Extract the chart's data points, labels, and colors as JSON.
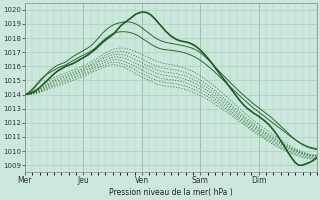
{
  "title": "Pression niveau de la mer( hPa )",
  "bg_color": "#cce8dc",
  "grid_color": "#a8cfc0",
  "line_color": "#1a5c1a",
  "ylim": [
    1008.5,
    1020.5
  ],
  "yticks": [
    1009,
    1010,
    1011,
    1012,
    1013,
    1014,
    1015,
    1016,
    1017,
    1018,
    1019,
    1020
  ],
  "day_labels": [
    "Mer",
    "Jeu",
    "Ven",
    "Sam",
    "Dim"
  ],
  "day_positions": [
    0,
    48,
    96,
    144,
    192
  ],
  "total_hours": 240,
  "main_line": [
    1014.0,
    1014.05,
    1014.15,
    1014.3,
    1014.5,
    1014.75,
    1015.0,
    1015.25,
    1015.5,
    1015.7,
    1015.85,
    1016.0,
    1016.1,
    1016.2,
    1016.35,
    1016.5,
    1016.65,
    1016.8,
    1017.0,
    1017.2,
    1017.45,
    1017.7,
    1017.9,
    1018.1,
    1018.3,
    1018.6,
    1018.9,
    1019.1,
    1019.3,
    1019.5,
    1019.7,
    1019.8,
    1019.85,
    1019.8,
    1019.65,
    1019.4,
    1019.1,
    1018.8,
    1018.5,
    1018.25,
    1018.05,
    1017.9,
    1017.8,
    1017.75,
    1017.7,
    1017.6,
    1017.45,
    1017.25,
    1017.0,
    1016.7,
    1016.4,
    1016.05,
    1015.7,
    1015.35,
    1015.0,
    1014.65,
    1014.3,
    1013.95,
    1013.6,
    1013.3,
    1013.05,
    1012.85,
    1012.65,
    1012.5,
    1012.3,
    1012.1,
    1011.85,
    1011.55,
    1011.2,
    1010.8,
    1010.4,
    1009.95,
    1009.55,
    1009.2,
    1009.0,
    1009.0,
    1009.1,
    1009.2,
    1009.35,
    1009.55
  ],
  "upper_line1": [
    1014.0,
    1014.1,
    1014.3,
    1014.6,
    1014.9,
    1015.2,
    1015.5,
    1015.75,
    1015.95,
    1016.1,
    1016.2,
    1016.3,
    1016.5,
    1016.7,
    1016.85,
    1017.0,
    1017.15,
    1017.3,
    1017.5,
    1017.75,
    1018.05,
    1018.35,
    1018.6,
    1018.8,
    1018.95,
    1019.05,
    1019.1,
    1019.15,
    1019.15,
    1019.1,
    1019.0,
    1018.85,
    1018.65,
    1018.45,
    1018.25,
    1018.05,
    1017.9,
    1017.78,
    1017.7,
    1017.65,
    1017.6,
    1017.55,
    1017.5,
    1017.45,
    1017.38,
    1017.3,
    1017.2,
    1017.05,
    1016.85,
    1016.6,
    1016.35,
    1016.08,
    1015.8,
    1015.52,
    1015.25,
    1014.98,
    1014.72,
    1014.47,
    1014.22,
    1013.98,
    1013.75,
    1013.52,
    1013.3,
    1013.1,
    1012.9,
    1012.7,
    1012.5,
    1012.28,
    1012.05,
    1011.8,
    1011.55,
    1011.3,
    1011.05,
    1010.82,
    1010.62,
    1010.45,
    1010.32,
    1010.22,
    1010.15,
    1010.1
  ],
  "upper_line2": [
    1014.0,
    1014.15,
    1014.4,
    1014.7,
    1015.0,
    1015.25,
    1015.45,
    1015.6,
    1015.75,
    1015.9,
    1016.0,
    1016.1,
    1016.25,
    1016.4,
    1016.55,
    1016.7,
    1016.82,
    1016.95,
    1017.1,
    1017.3,
    1017.55,
    1017.8,
    1018.02,
    1018.2,
    1018.35,
    1018.42,
    1018.45,
    1018.45,
    1018.42,
    1018.35,
    1018.25,
    1018.1,
    1017.92,
    1017.75,
    1017.58,
    1017.42,
    1017.3,
    1017.22,
    1017.18,
    1017.15,
    1017.12,
    1017.08,
    1017.03,
    1016.97,
    1016.88,
    1016.78,
    1016.65,
    1016.5,
    1016.32,
    1016.12,
    1015.9,
    1015.67,
    1015.42,
    1015.17,
    1014.92,
    1014.67,
    1014.42,
    1014.17,
    1013.92,
    1013.68,
    1013.45,
    1013.22,
    1013.0,
    1012.8,
    1012.6,
    1012.4,
    1012.2,
    1012.0,
    1011.8,
    1011.6,
    1011.4,
    1011.2,
    1011.0,
    1010.82,
    1010.65,
    1010.5,
    1010.38,
    1010.28,
    1010.22,
    1010.18
  ],
  "spread_lines": [
    [
      1014.0,
      1014.05,
      1014.15,
      1014.3,
      1014.5,
      1014.7,
      1014.9,
      1015.08,
      1015.22,
      1015.35,
      1015.45,
      1015.55,
      1015.65,
      1015.75,
      1015.85,
      1015.95,
      1016.05,
      1016.18,
      1016.32,
      1016.48,
      1016.65,
      1016.82,
      1016.98,
      1017.12,
      1017.22,
      1017.28,
      1017.3,
      1017.28,
      1017.22,
      1017.14,
      1017.04,
      1016.92,
      1016.8,
      1016.67,
      1016.54,
      1016.42,
      1016.32,
      1016.24,
      1016.18,
      1016.14,
      1016.1,
      1016.05,
      1015.98,
      1015.9,
      1015.8,
      1015.68,
      1015.55,
      1015.4,
      1015.23,
      1015.05,
      1014.85,
      1014.65,
      1014.43,
      1014.2,
      1013.97,
      1013.73,
      1013.49,
      1013.25,
      1013.01,
      1012.78,
      1012.56,
      1012.34,
      1012.13,
      1011.93,
      1011.74,
      1011.55,
      1011.36,
      1011.18,
      1011.0,
      1010.82,
      1010.65,
      1010.48,
      1010.32,
      1010.18,
      1010.05,
      1009.94,
      1009.85,
      1009.78,
      1009.73,
      1009.7
    ],
    [
      1014.0,
      1014.05,
      1014.13,
      1014.25,
      1014.4,
      1014.57,
      1014.75,
      1014.92,
      1015.07,
      1015.2,
      1015.3,
      1015.4,
      1015.5,
      1015.6,
      1015.7,
      1015.8,
      1015.9,
      1016.02,
      1016.15,
      1016.3,
      1016.47,
      1016.64,
      1016.8,
      1016.93,
      1017.02,
      1017.07,
      1017.07,
      1017.03,
      1016.95,
      1016.84,
      1016.72,
      1016.59,
      1016.46,
      1016.33,
      1016.2,
      1016.08,
      1015.98,
      1015.9,
      1015.85,
      1015.81,
      1015.78,
      1015.73,
      1015.67,
      1015.59,
      1015.49,
      1015.37,
      1015.24,
      1015.09,
      1014.93,
      1014.75,
      1014.56,
      1014.36,
      1014.15,
      1013.93,
      1013.7,
      1013.47,
      1013.24,
      1013.01,
      1012.78,
      1012.55,
      1012.33,
      1012.12,
      1011.92,
      1011.72,
      1011.53,
      1011.35,
      1011.17,
      1011.0,
      1010.83,
      1010.67,
      1010.51,
      1010.36,
      1010.22,
      1010.09,
      1009.97,
      1009.87,
      1009.79,
      1009.73,
      1009.69,
      1009.67
    ],
    [
      1014.0,
      1014.04,
      1014.11,
      1014.22,
      1014.36,
      1014.51,
      1014.67,
      1014.83,
      1014.97,
      1015.1,
      1015.2,
      1015.3,
      1015.4,
      1015.5,
      1015.6,
      1015.7,
      1015.8,
      1015.92,
      1016.05,
      1016.19,
      1016.35,
      1016.51,
      1016.65,
      1016.77,
      1016.84,
      1016.87,
      1016.85,
      1016.79,
      1016.7,
      1016.59,
      1016.46,
      1016.33,
      1016.2,
      1016.07,
      1015.94,
      1015.82,
      1015.72,
      1015.64,
      1015.59,
      1015.55,
      1015.52,
      1015.48,
      1015.42,
      1015.35,
      1015.25,
      1015.14,
      1015.01,
      1014.87,
      1014.71,
      1014.54,
      1014.36,
      1014.16,
      1013.96,
      1013.75,
      1013.53,
      1013.3,
      1013.08,
      1012.86,
      1012.63,
      1012.41,
      1012.2,
      1011.99,
      1011.79,
      1011.6,
      1011.42,
      1011.24,
      1011.07,
      1010.9,
      1010.74,
      1010.59,
      1010.44,
      1010.3,
      1010.17,
      1010.05,
      1009.94,
      1009.85,
      1009.78,
      1009.72,
      1009.68,
      1009.66
    ],
    [
      1014.0,
      1014.03,
      1014.09,
      1014.18,
      1014.3,
      1014.44,
      1014.59,
      1014.73,
      1014.86,
      1014.98,
      1015.08,
      1015.18,
      1015.28,
      1015.38,
      1015.48,
      1015.58,
      1015.68,
      1015.8,
      1015.92,
      1016.06,
      1016.21,
      1016.36,
      1016.49,
      1016.6,
      1016.66,
      1016.67,
      1016.63,
      1016.56,
      1016.46,
      1016.34,
      1016.21,
      1016.08,
      1015.95,
      1015.82,
      1015.69,
      1015.57,
      1015.47,
      1015.4,
      1015.35,
      1015.31,
      1015.28,
      1015.24,
      1015.18,
      1015.11,
      1015.02,
      1014.91,
      1014.79,
      1014.65,
      1014.5,
      1014.33,
      1014.16,
      1013.97,
      1013.77,
      1013.57,
      1013.36,
      1013.14,
      1012.92,
      1012.71,
      1012.49,
      1012.28,
      1012.07,
      1011.87,
      1011.67,
      1011.48,
      1011.3,
      1011.13,
      1010.96,
      1010.8,
      1010.64,
      1010.5,
      1010.36,
      1010.22,
      1010.1,
      1009.99,
      1009.88,
      1009.79,
      1009.72,
      1009.67,
      1009.64,
      1009.62
    ],
    [
      1014.0,
      1014.02,
      1014.07,
      1014.15,
      1014.25,
      1014.37,
      1014.5,
      1014.63,
      1014.75,
      1014.86,
      1014.96,
      1015.06,
      1015.16,
      1015.26,
      1015.36,
      1015.46,
      1015.56,
      1015.67,
      1015.8,
      1015.93,
      1016.07,
      1016.21,
      1016.33,
      1016.43,
      1016.48,
      1016.47,
      1016.42,
      1016.33,
      1016.22,
      1016.09,
      1015.96,
      1015.82,
      1015.69,
      1015.56,
      1015.44,
      1015.32,
      1015.22,
      1015.15,
      1015.1,
      1015.07,
      1015.04,
      1015.0,
      1014.94,
      1014.87,
      1014.78,
      1014.68,
      1014.56,
      1014.42,
      1014.28,
      1014.12,
      1013.95,
      1013.77,
      1013.58,
      1013.39,
      1013.19,
      1012.98,
      1012.77,
      1012.56,
      1012.35,
      1012.14,
      1011.94,
      1011.74,
      1011.55,
      1011.36,
      1011.18,
      1011.01,
      1010.84,
      1010.68,
      1010.53,
      1010.39,
      1010.25,
      1010.12,
      1010.0,
      1009.9,
      1009.8,
      1009.71,
      1009.64,
      1009.59,
      1009.55,
      1009.53
    ],
    [
      1014.0,
      1014.01,
      1014.05,
      1014.12,
      1014.2,
      1014.3,
      1014.42,
      1014.53,
      1014.64,
      1014.74,
      1014.83,
      1014.93,
      1015.03,
      1015.13,
      1015.23,
      1015.33,
      1015.44,
      1015.55,
      1015.67,
      1015.8,
      1015.93,
      1016.06,
      1016.17,
      1016.26,
      1016.3,
      1016.28,
      1016.21,
      1016.11,
      1015.99,
      1015.85,
      1015.71,
      1015.57,
      1015.44,
      1015.31,
      1015.19,
      1015.07,
      1014.97,
      1014.9,
      1014.85,
      1014.82,
      1014.79,
      1014.75,
      1014.7,
      1014.63,
      1014.55,
      1014.44,
      1014.33,
      1014.2,
      1014.06,
      1013.91,
      1013.75,
      1013.58,
      1013.4,
      1013.22,
      1013.03,
      1012.83,
      1012.63,
      1012.43,
      1012.22,
      1012.02,
      1011.82,
      1011.62,
      1011.43,
      1011.25,
      1011.07,
      1010.9,
      1010.73,
      1010.57,
      1010.42,
      1010.28,
      1010.14,
      1010.02,
      1009.9,
      1009.8,
      1009.71,
      1009.63,
      1009.57,
      1009.52,
      1009.49,
      1009.47
    ],
    [
      1014.0,
      1014.01,
      1014.03,
      1014.08,
      1014.15,
      1014.24,
      1014.33,
      1014.43,
      1014.53,
      1014.62,
      1014.71,
      1014.81,
      1014.91,
      1015.01,
      1015.11,
      1015.21,
      1015.31,
      1015.43,
      1015.55,
      1015.67,
      1015.8,
      1015.92,
      1016.02,
      1016.09,
      1016.12,
      1016.09,
      1016.01,
      1015.9,
      1015.77,
      1015.62,
      1015.47,
      1015.33,
      1015.19,
      1015.06,
      1014.94,
      1014.82,
      1014.72,
      1014.65,
      1014.6,
      1014.57,
      1014.54,
      1014.51,
      1014.46,
      1014.39,
      1014.31,
      1014.22,
      1014.1,
      1013.98,
      1013.84,
      1013.7,
      1013.55,
      1013.38,
      1013.21,
      1013.04,
      1012.86,
      1012.67,
      1012.48,
      1012.29,
      1012.09,
      1011.9,
      1011.71,
      1011.52,
      1011.33,
      1011.15,
      1010.98,
      1010.81,
      1010.64,
      1010.48,
      1010.33,
      1010.19,
      1010.05,
      1009.93,
      1009.82,
      1009.72,
      1009.63,
      1009.55,
      1009.5,
      1009.46,
      1009.43,
      1009.41
    ]
  ]
}
